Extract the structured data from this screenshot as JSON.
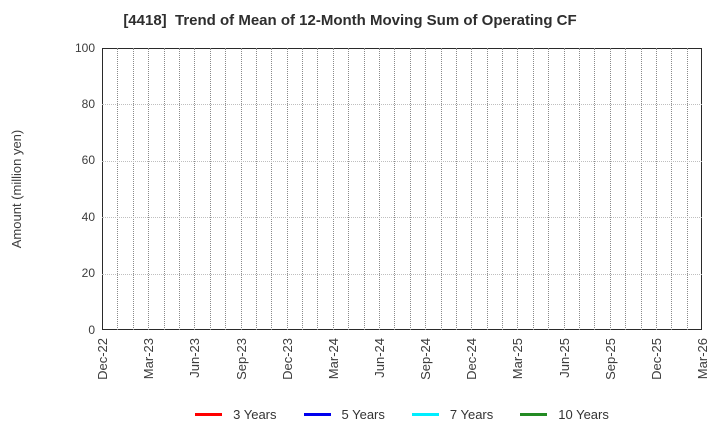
{
  "chart_data": {
    "type": "line",
    "title": "[4418]  Trend of Mean of 12-Month Moving Sum of Operating CF",
    "xlabel": "",
    "ylabel": "Amount (million yen)",
    "ylim": [
      0,
      100
    ],
    "yticks": [
      0,
      20,
      40,
      60,
      80,
      100
    ],
    "xticklabels": [
      "Dec-22",
      "Mar-23",
      "Jun-23",
      "Sep-23",
      "Dec-23",
      "Mar-24",
      "Jun-24",
      "Sep-24",
      "Dec-24",
      "Mar-25",
      "Jun-25",
      "Sep-25",
      "Dec-25",
      "Mar-26"
    ],
    "x_tick_interval_months": 3,
    "x_minor_count": 39,
    "grid": true,
    "plot_empty": true,
    "legend_position": "bottom",
    "series": [
      {
        "name": "3 Years",
        "color": "#ff0000",
        "values": []
      },
      {
        "name": "5 Years",
        "color": "#0000ee",
        "values": []
      },
      {
        "name": "7 Years",
        "color": "#00eeff",
        "values": []
      },
      {
        "name": "10 Years",
        "color": "#238b23",
        "values": []
      }
    ]
  }
}
